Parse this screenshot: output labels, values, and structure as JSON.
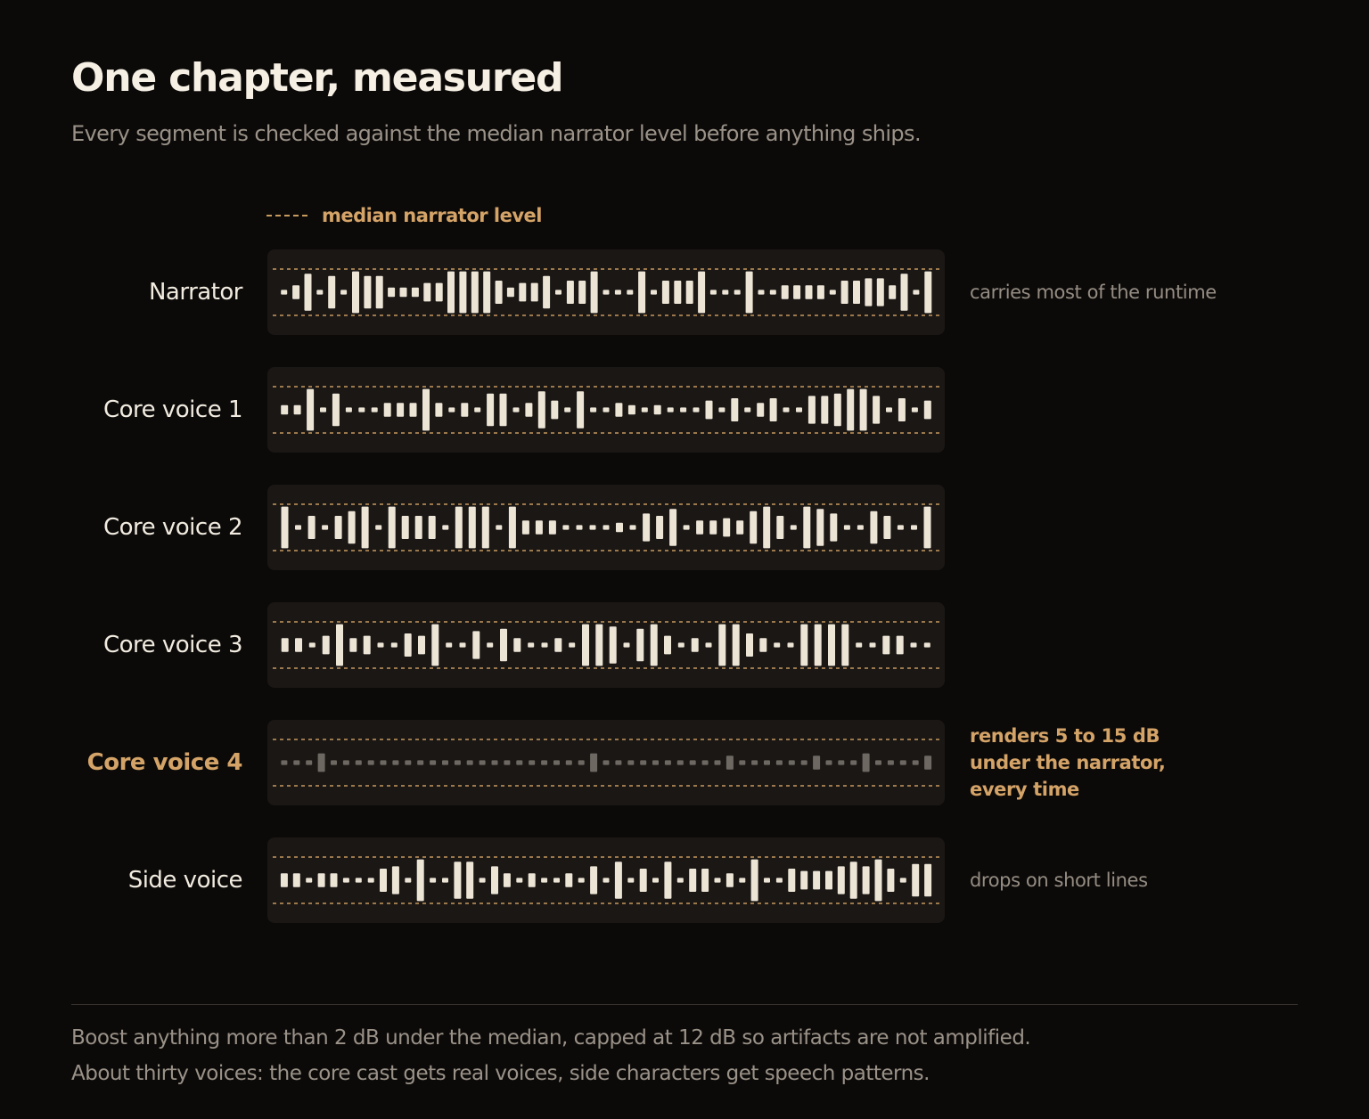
{
  "header": {
    "title": "One chapter, measured",
    "subtitle": "Every segment is checked against the median narrator level before anything ships."
  },
  "legend": {
    "label": "median narrator level"
  },
  "colors": {
    "bar": "#ece4d5",
    "bar_dim": "#6e6862",
    "accent": "#d4a367",
    "median_line": "#c79a5e"
  },
  "chart_data": {
    "type": "bar",
    "reference_line": "median narrator level",
    "rows": [
      {
        "label": "Narrator",
        "note": "carries most of the runtime",
        "highlight": false,
        "values": [
          0.1,
          0.3,
          0.8,
          0.1,
          0.7,
          0.1,
          0.9,
          0.7,
          0.7,
          0.2,
          0.2,
          0.2,
          0.4,
          0.4,
          0.9,
          0.9,
          0.9,
          0.9,
          0.5,
          0.2,
          0.4,
          0.4,
          0.7,
          0.1,
          0.5,
          0.5,
          0.9,
          0.1,
          0.1,
          0.1,
          0.9,
          0.1,
          0.5,
          0.5,
          0.5,
          0.9,
          0.1,
          0.1,
          0.1,
          0.9,
          0.1,
          0.1,
          0.3,
          0.3,
          0.3,
          0.3,
          0.1,
          0.5,
          0.5,
          0.6,
          0.6,
          0.3,
          0.8,
          0.1,
          0.9
        ]
      },
      {
        "label": "Core voice 1",
        "note": "",
        "highlight": false,
        "values": [
          0.2,
          0.2,
          0.9,
          0.1,
          0.7,
          0.1,
          0.1,
          0.1,
          0.3,
          0.3,
          0.3,
          0.9,
          0.3,
          0.1,
          0.3,
          0.1,
          0.7,
          0.7,
          0.1,
          0.3,
          0.8,
          0.4,
          0.1,
          0.8,
          0.1,
          0.1,
          0.3,
          0.2,
          0.1,
          0.2,
          0.1,
          0.1,
          0.1,
          0.4,
          0.1,
          0.5,
          0.1,
          0.3,
          0.5,
          0.1,
          0.1,
          0.6,
          0.6,
          0.7,
          0.9,
          0.9,
          0.6,
          0.1,
          0.5,
          0.1,
          0.4
        ]
      },
      {
        "label": "Core voice 2",
        "note": "",
        "highlight": false,
        "values": [
          0.9,
          0.1,
          0.5,
          0.1,
          0.5,
          0.7,
          0.9,
          0.1,
          0.9,
          0.5,
          0.5,
          0.5,
          0.1,
          0.9,
          0.9,
          0.9,
          0.1,
          0.9,
          0.3,
          0.3,
          0.3,
          0.1,
          0.1,
          0.1,
          0.1,
          0.2,
          0.1,
          0.6,
          0.5,
          0.8,
          0.1,
          0.3,
          0.3,
          0.4,
          0.3,
          0.7,
          0.9,
          0.5,
          0.1,
          0.9,
          0.8,
          0.6,
          0.1,
          0.1,
          0.7,
          0.5,
          0.1,
          0.1,
          0.9
        ]
      },
      {
        "label": "Core voice 3",
        "note": "",
        "highlight": false,
        "values": [
          0.3,
          0.3,
          0.1,
          0.4,
          0.9,
          0.3,
          0.4,
          0.1,
          0.1,
          0.5,
          0.4,
          0.9,
          0.1,
          0.1,
          0.6,
          0.1,
          0.7,
          0.3,
          0.1,
          0.1,
          0.3,
          0.1,
          0.9,
          0.9,
          0.8,
          0.1,
          0.7,
          0.9,
          0.4,
          0.1,
          0.3,
          0.1,
          0.9,
          0.9,
          0.5,
          0.3,
          0.1,
          0.1,
          0.9,
          0.9,
          0.9,
          0.9,
          0.1,
          0.1,
          0.4,
          0.4,
          0.1,
          0.1
        ]
      },
      {
        "label": "Core voice 4",
        "note": "renders 5 to 15 dB under the narrator, every time",
        "highlight": true,
        "values": [
          0.1,
          0.1,
          0.1,
          0.4,
          0.1,
          0.1,
          0.1,
          0.1,
          0.1,
          0.1,
          0.1,
          0.1,
          0.1,
          0.1,
          0.1,
          0.1,
          0.1,
          0.1,
          0.1,
          0.1,
          0.1,
          0.1,
          0.1,
          0.1,
          0.1,
          0.4,
          0.1,
          0.1,
          0.1,
          0.1,
          0.1,
          0.1,
          0.1,
          0.1,
          0.1,
          0.1,
          0.3,
          0.1,
          0.1,
          0.1,
          0.1,
          0.1,
          0.1,
          0.3,
          0.1,
          0.1,
          0.1,
          0.4,
          0.1,
          0.1,
          0.1,
          0.1,
          0.3
        ]
      },
      {
        "label": "Side voice",
        "note": "drops on short lines",
        "highlight": false,
        "values": [
          0.3,
          0.3,
          0.1,
          0.3,
          0.3,
          0.1,
          0.1,
          0.1,
          0.5,
          0.6,
          0.1,
          0.9,
          0.1,
          0.1,
          0.8,
          0.8,
          0.1,
          0.6,
          0.3,
          0.1,
          0.3,
          0.1,
          0.1,
          0.3,
          0.1,
          0.6,
          0.1,
          0.8,
          0.1,
          0.5,
          0.1,
          0.8,
          0.1,
          0.5,
          0.5,
          0.1,
          0.3,
          0.1,
          0.9,
          0.1,
          0.1,
          0.5,
          0.4,
          0.4,
          0.4,
          0.6,
          0.8,
          0.6,
          0.9,
          0.5,
          0.1,
          0.7,
          0.7
        ]
      }
    ]
  },
  "footer": {
    "line1": "Boost anything more than 2 dB under the median, capped at 12 dB so artifacts are not amplified.",
    "line2": "About thirty voices: the core cast gets real voices, side characters get speech patterns."
  }
}
